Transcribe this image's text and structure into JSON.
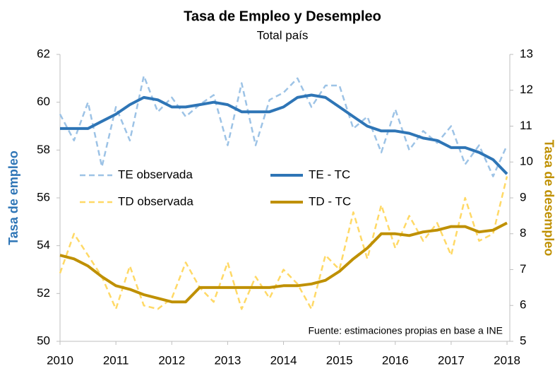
{
  "chart_data": {
    "type": "line",
    "title": "Tasa de Empleo y Desempleo",
    "subtitle": "Total país",
    "ylabel": "Tasa de empleo",
    "y2label": "Tasa de desempleo",
    "annotation": "Fuente: estimaciones propias en base a INE",
    "x": [
      2010,
      2010.25,
      2010.5,
      2010.75,
      2011,
      2011.25,
      2011.5,
      2011.75,
      2012,
      2012.25,
      2012.5,
      2012.75,
      2013,
      2013.25,
      2013.5,
      2013.75,
      2014,
      2014.25,
      2014.5,
      2014.75,
      2015,
      2015.25,
      2015.5,
      2015.75,
      2016,
      2016.25,
      2016.5,
      2016.75,
      2017,
      2017.25,
      2017.5,
      2017.75,
      2018
    ],
    "xlim": [
      2010,
      2018.05
    ],
    "xticks": [
      2010,
      2011,
      2012,
      2013,
      2014,
      2015,
      2016,
      2017,
      2018
    ],
    "ylim": [
      50,
      62
    ],
    "yticks": [
      50,
      52,
      54,
      56,
      58,
      60,
      62
    ],
    "y2lim": [
      5,
      13
    ],
    "y2ticks": [
      5,
      6,
      7,
      8,
      9,
      10,
      11,
      12,
      13
    ],
    "series": [
      {
        "name": "TE observada",
        "color": "#9dc3e6",
        "style": "dashed",
        "width": 2.5,
        "values": [
          59.5,
          58.4,
          60.0,
          57.3,
          59.8,
          58.4,
          61.1,
          59.6,
          60.2,
          59.4,
          59.9,
          60.3,
          58.2,
          60.8,
          58.2,
          60.1,
          60.4,
          61.0,
          59.8,
          60.7,
          60.7,
          58.9,
          59.4,
          57.9,
          59.7,
          58.0,
          58.8,
          58.3,
          59.0,
          57.4,
          58.2,
          56.9,
          58.2
        ]
      },
      {
        "name": "TE - TC",
        "color": "#2e75b6",
        "style": "solid",
        "width": 4,
        "values": [
          58.9,
          58.9,
          58.9,
          59.2,
          59.5,
          59.9,
          60.2,
          60.1,
          59.8,
          59.8,
          59.9,
          60.0,
          59.9,
          59.6,
          59.6,
          59.6,
          59.8,
          60.2,
          60.3,
          60.2,
          59.8,
          59.4,
          59.0,
          58.8,
          58.8,
          58.7,
          58.5,
          58.4,
          58.1,
          58.1,
          57.9,
          57.6,
          57.0
        ]
      },
      {
        "name": "TD observada",
        "color": "#ffd966",
        "style": "dashed",
        "width": 2.5,
        "axis": "y2",
        "values": [
          6.9,
          8.0,
          7.4,
          6.8,
          5.9,
          7.1,
          6.0,
          5.9,
          6.2,
          7.2,
          6.5,
          6.1,
          7.2,
          5.9,
          6.8,
          6.2,
          7.0,
          6.6,
          5.9,
          7.4,
          7.0,
          8.6,
          7.3,
          8.8,
          7.6,
          8.5,
          7.8,
          8.3,
          7.4,
          9.0,
          7.8,
          8.0,
          9.6
        ]
      },
      {
        "name": "TD - TC",
        "color": "#bf9000",
        "style": "solid",
        "width": 4,
        "axis": "y2",
        "values": [
          7.4,
          7.3,
          7.1,
          6.8,
          6.55,
          6.45,
          6.3,
          6.2,
          6.1,
          6.1,
          6.5,
          6.5,
          6.5,
          6.5,
          6.5,
          6.5,
          6.55,
          6.55,
          6.6,
          6.7,
          6.95,
          7.3,
          7.6,
          8.0,
          8.0,
          7.95,
          8.05,
          8.1,
          8.2,
          8.2,
          8.05,
          8.1,
          8.3
        ]
      }
    ],
    "ylabel_color": "#2e75b6",
    "y2label_color": "#bf9000"
  }
}
